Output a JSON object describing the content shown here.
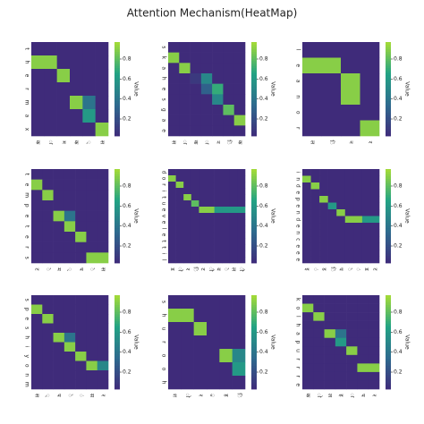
{
  "title": "Attention Mechanism(HeatMap)",
  "chart_data": [
    {
      "type": "heatmap",
      "x": [
        "क",
        "ा",
        "म",
        "क",
        "्",
        "स"
      ],
      "y": [
        "t",
        "h",
        "e",
        "r",
        "m",
        "a",
        "x"
      ],
      "z": [
        [
          0,
          0,
          0,
          0,
          0,
          0
        ],
        [
          0.9,
          0.9,
          0,
          0,
          0,
          0
        ],
        [
          0,
          0,
          0.9,
          0,
          0,
          0
        ],
        [
          0,
          0,
          0,
          0,
          0,
          0
        ],
        [
          0,
          0,
          0,
          0.9,
          0.4,
          0
        ],
        [
          0,
          0,
          0,
          0,
          0.6,
          0
        ],
        [
          0,
          0,
          0,
          0,
          0,
          0.9
        ]
      ],
      "colorbar": {
        "label": "Value",
        "lim": [
          0.03,
          0.97
        ],
        "ticks": [
          0.2,
          0.4,
          0.6,
          0.8
        ],
        "colors": [
          "#3f2b7a",
          "#2e6a8e",
          "#22a384",
          "#a5db36"
        ]
      }
    },
    {
      "type": "heatmap",
      "x": [
        "स",
        "ा",
        "क",
        "ा",
        "न",
        "ि",
        "क"
      ],
      "y": [
        "s",
        "k",
        "a",
        "h",
        "e",
        "s",
        "g",
        "a",
        "e"
      ],
      "z": [
        [
          0,
          0,
          0,
          0,
          0,
          0,
          0
        ],
        [
          0.9,
          0,
          0,
          0,
          0,
          0,
          0
        ],
        [
          0,
          0.9,
          0,
          0,
          0,
          0,
          0
        ],
        [
          0,
          0,
          0.1,
          0.5,
          0,
          0,
          0
        ],
        [
          0,
          0,
          0,
          0.3,
          0.7,
          0,
          0
        ],
        [
          0,
          0,
          0,
          0,
          0.5,
          0,
          0
        ],
        [
          0,
          0,
          0,
          0,
          0,
          0.8,
          0
        ],
        [
          0,
          0,
          0,
          0,
          0,
          0,
          0.9
        ],
        [
          0,
          0,
          0,
          0,
          0,
          0,
          0
        ]
      ],
      "colorbar": {
        "label": "Value",
        "lim": [
          0.03,
          0.97
        ],
        "ticks": [
          0.2,
          0.4,
          0.6,
          0.8
        ],
        "colors": [
          "#3f2b7a",
          "#2e6a8e",
          "#22a384",
          "#a5db36"
        ]
      }
    },
    {
      "type": "heatmap",
      "x": [
        "ल",
        "ि",
        "न",
        "र"
      ],
      "y": [
        "l",
        "e",
        "a",
        "n",
        "o",
        "r"
      ],
      "z": [
        [
          0,
          0,
          0,
          0
        ],
        [
          0.9,
          0.9,
          0,
          0
        ],
        [
          0,
          0,
          0.9,
          0
        ],
        [
          0,
          0,
          0.9,
          0
        ],
        [
          0,
          0,
          0,
          0
        ],
        [
          0,
          0,
          0,
          0.9
        ]
      ],
      "colorbar": {
        "label": "Value",
        "lim": [
          0.03,
          0.97
        ],
        "ticks": [
          0.2,
          0.4,
          0.6,
          0.8
        ],
        "colors": [
          "#3f2b7a",
          "#2e6a8e",
          "#22a384",
          "#a5db36"
        ]
      }
    },
    {
      "type": "heatmap",
      "x": [
        "ट",
        "े",
        "म",
        "्",
        "प",
        "े",
        "स"
      ],
      "y": [
        "t",
        "e",
        "m",
        "p",
        "e",
        "t",
        "e",
        "r",
        "s"
      ],
      "z": [
        [
          0,
          0,
          0,
          0,
          0,
          0,
          0
        ],
        [
          0.9,
          0,
          0,
          0,
          0,
          0,
          0
        ],
        [
          0,
          0.9,
          0,
          0,
          0,
          0,
          0
        ],
        [
          0,
          0,
          0,
          0,
          0,
          0,
          0
        ],
        [
          0,
          0,
          0.9,
          0.4,
          0,
          0,
          0
        ],
        [
          0,
          0,
          0,
          0.9,
          0,
          0,
          0
        ],
        [
          0,
          0,
          0,
          0,
          0.9,
          0,
          0
        ],
        [
          0,
          0,
          0,
          0,
          0,
          0,
          0
        ],
        [
          0,
          0,
          0,
          0,
          0,
          0.9,
          0.9
        ]
      ],
      "colorbar": {
        "label": "Value",
        "lim": [
          0.03,
          0.97
        ],
        "ticks": [
          0.2,
          0.4,
          0.6,
          0.8
        ],
        "colors": [
          "#3f2b7a",
          "#2e6a8e",
          "#22a384",
          "#a5db36"
        ]
      }
    },
    {
      "type": "heatmap",
      "x": [
        "ड",
        "ो",
        "र",
        "ि",
        "ट",
        "ी",
        "व",
        "े",
        "ल",
        "ी"
      ],
      "y": [
        "d",
        "o",
        "r",
        "i",
        "t",
        "u",
        "e",
        "v",
        "e",
        "l",
        "e",
        "t",
        "t",
        "i",
        "l"
      ],
      "z": [
        [
          0,
          0,
          0,
          0,
          0,
          0,
          0,
          0,
          0,
          0
        ],
        [
          0.9,
          0,
          0,
          0,
          0,
          0,
          0,
          0,
          0,
          0
        ],
        [
          0,
          0.9,
          0,
          0,
          0,
          0,
          0,
          0,
          0,
          0
        ],
        [
          0,
          0,
          0,
          0,
          0,
          0,
          0,
          0,
          0,
          0
        ],
        [
          0,
          0,
          0.9,
          0,
          0,
          0,
          0,
          0,
          0,
          0
        ],
        [
          0,
          0,
          0,
          0.8,
          0,
          0,
          0,
          0,
          0,
          0
        ],
        [
          0,
          0,
          0,
          0,
          0.9,
          0.9,
          0.6,
          0.6,
          0.6,
          0.6
        ],
        [
          0,
          0,
          0,
          0,
          0,
          0,
          0,
          0,
          0,
          0
        ],
        [
          0,
          0,
          0,
          0,
          0,
          0,
          0,
          0,
          0,
          0
        ],
        [
          0,
          0,
          0,
          0,
          0,
          0,
          0,
          0,
          0,
          0
        ],
        [
          0,
          0,
          0,
          0,
          0,
          0,
          0,
          0,
          0,
          0
        ],
        [
          0,
          0,
          0,
          0,
          0,
          0,
          0,
          0,
          0,
          0
        ],
        [
          0,
          0,
          0,
          0,
          0,
          0,
          0,
          0,
          0,
          0
        ],
        [
          0,
          0,
          0,
          0,
          0,
          0,
          0,
          0,
          0,
          0
        ],
        [
          0,
          0,
          0,
          0,
          0,
          0,
          0,
          0,
          0,
          0
        ]
      ],
      "colorbar": {
        "label": "Value",
        "lim": [
          0.03,
          0.97
        ],
        "ticks": [
          0.2,
          0.4,
          0.6,
          0.8
        ],
        "colors": [
          "#3f2b7a",
          "#2e6a8e",
          "#22a384",
          "#a5db36"
        ]
      }
    },
    {
      "type": "heatmap",
      "x": [
        "इ",
        "ं",
        "ड",
        "ि",
        "प",
        "े",
        "ं",
        "ड",
        "ट"
      ],
      "y": [
        "i",
        "n",
        "d",
        "e",
        "p",
        "e",
        "n",
        "d",
        "e",
        "n",
        "c",
        "e",
        "e",
        "e"
      ],
      "z": [
        [
          0,
          0,
          0,
          0,
          0,
          0,
          0,
          0,
          0
        ],
        [
          0.9,
          0,
          0,
          0,
          0,
          0,
          0,
          0,
          0
        ],
        [
          0,
          0.9,
          0,
          0,
          0,
          0,
          0,
          0,
          0
        ],
        [
          0,
          0,
          0,
          0,
          0,
          0,
          0,
          0,
          0
        ],
        [
          0,
          0,
          0.9,
          0,
          0,
          0,
          0,
          0,
          0
        ],
        [
          0,
          0,
          0,
          0.6,
          0,
          0,
          0,
          0,
          0
        ],
        [
          0,
          0,
          0,
          0,
          0.9,
          0,
          0,
          0,
          0
        ],
        [
          0,
          0,
          0,
          0,
          0,
          0.9,
          0.9,
          0.6,
          0.6
        ],
        [
          0,
          0,
          0,
          0,
          0,
          0,
          0,
          0,
          0
        ],
        [
          0,
          0,
          0,
          0,
          0,
          0,
          0,
          0,
          0
        ],
        [
          0,
          0,
          0,
          0,
          0,
          0,
          0,
          0,
          0
        ],
        [
          0,
          0,
          0,
          0,
          0,
          0,
          0,
          0,
          0
        ],
        [
          0,
          0,
          0,
          0,
          0,
          0,
          0,
          0,
          0
        ],
        [
          0,
          0,
          0,
          0,
          0,
          0,
          0,
          0,
          0
        ]
      ],
      "colorbar": {
        "label": "Value",
        "lim": [
          0.03,
          0.97
        ],
        "ticks": [
          0.2,
          0.4,
          0.6,
          0.8
        ],
        "colors": [
          "#3f2b7a",
          "#2e6a8e",
          "#22a384",
          "#a5db36"
        ]
      }
    },
    {
      "type": "heatmap",
      "x": [
        "स",
        "्",
        "प",
        "े",
        "ं",
        "स",
        "र"
      ],
      "y": [
        "s",
        "p",
        "e",
        "s",
        "h",
        "i",
        "y",
        "o",
        "n",
        "m"
      ],
      "z": [
        [
          0,
          0,
          0,
          0,
          0,
          0,
          0
        ],
        [
          0.9,
          0,
          0,
          0,
          0,
          0,
          0
        ],
        [
          0,
          0.9,
          0,
          0,
          0,
          0,
          0
        ],
        [
          0,
          0,
          0,
          0,
          0,
          0,
          0
        ],
        [
          0,
          0,
          0.9,
          0.4,
          0,
          0,
          0
        ],
        [
          0,
          0,
          0,
          0.9,
          0,
          0,
          0
        ],
        [
          0,
          0,
          0,
          0,
          0.9,
          0,
          0
        ],
        [
          0,
          0,
          0,
          0,
          0,
          0.9,
          0.5
        ],
        [
          0,
          0,
          0,
          0,
          0,
          0,
          0
        ],
        [
          0,
          0,
          0,
          0,
          0,
          0,
          0
        ]
      ],
      "colorbar": {
        "label": "Value",
        "lim": [
          0.03,
          0.97
        ],
        "ticks": [
          0.2,
          0.4,
          0.6,
          0.8
        ],
        "colors": [
          "#3f2b7a",
          "#2e6a8e",
          "#22a384",
          "#a5db36"
        ]
      }
    },
    {
      "type": "heatmap",
      "x": [
        "श",
        "ो",
        "र",
        "ु",
        "ह",
        "ि"
      ],
      "y": [
        "s",
        "h",
        "u",
        "r",
        "o",
        "o",
        "h"
      ],
      "z": [
        [
          0,
          0,
          0,
          0,
          0,
          0
        ],
        [
          0.9,
          0.9,
          0,
          0,
          0,
          0
        ],
        [
          0,
          0,
          0.9,
          0,
          0,
          0
        ],
        [
          0,
          0,
          0,
          0,
          0,
          0
        ],
        [
          0,
          0,
          0,
          0,
          0.9,
          0.5
        ],
        [
          0,
          0,
          0,
          0,
          0,
          0.6
        ],
        [
          0,
          0,
          0,
          0,
          0,
          0
        ]
      ],
      "colorbar": {
        "label": "Value",
        "lim": [
          0.03,
          0.97
        ],
        "ticks": [
          0.2,
          0.4,
          0.6,
          0.8
        ],
        "colors": [
          "#3f2b7a",
          "#2e6a8e",
          "#22a384",
          "#a5db36"
        ]
      }
    },
    {
      "type": "heatmap",
      "x": [
        "क",
        "ो",
        "ल",
        "ह",
        "ा",
        "प",
        "र"
      ],
      "y": [
        "k",
        "o",
        "l",
        "h",
        "a",
        "p",
        "u",
        "r",
        "r",
        "r",
        "e"
      ],
      "z": [
        [
          0,
          0,
          0,
          0,
          0,
          0,
          0
        ],
        [
          0.9,
          0,
          0,
          0,
          0,
          0,
          0
        ],
        [
          0,
          0.9,
          0,
          0,
          0,
          0,
          0
        ],
        [
          0,
          0,
          0,
          0,
          0,
          0,
          0
        ],
        [
          0,
          0,
          0.9,
          0.4,
          0,
          0,
          0
        ],
        [
          0,
          0,
          0,
          0.6,
          0,
          0,
          0
        ],
        [
          0,
          0,
          0,
          0,
          0.9,
          0,
          0
        ],
        [
          0,
          0,
          0,
          0,
          0,
          0,
          0
        ],
        [
          0,
          0,
          0,
          0,
          0,
          0.9,
          0.9
        ],
        [
          0,
          0,
          0,
          0,
          0,
          0,
          0
        ],
        [
          0,
          0,
          0,
          0,
          0,
          0,
          0
        ]
      ],
      "colorbar": {
        "label": "Value",
        "lim": [
          0.03,
          0.97
        ],
        "ticks": [
          0.2,
          0.4,
          0.6,
          0.8
        ],
        "colors": [
          "#3f2b7a",
          "#2e6a8e",
          "#22a384",
          "#a5db36"
        ]
      }
    }
  ]
}
